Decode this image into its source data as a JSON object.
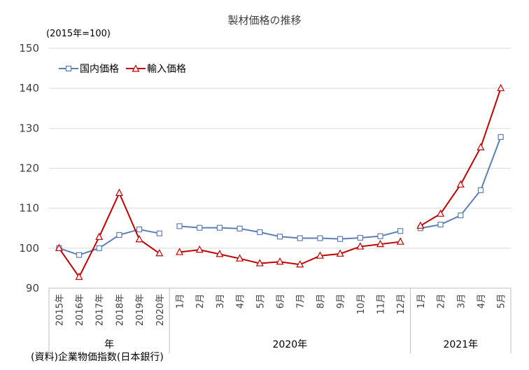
{
  "chart_data": {
    "type": "line",
    "title": "製材価格の推移",
    "unit_label": "(2015年=100)",
    "source": "(資料)企業物価指数(日本銀行)",
    "ylim": [
      90,
      150
    ],
    "yticks": [
      90,
      100,
      110,
      120,
      130,
      140,
      150
    ],
    "grid": true,
    "legend_position": "top-left",
    "colors": {
      "domestic": "#5b7fb5",
      "import": "#c00000",
      "grid": "#d9d9d9",
      "axis": "#bfbfbf"
    },
    "groups": [
      {
        "label": "年",
        "categories": [
          "2015年",
          "2016年",
          "2017年",
          "2018年",
          "2019年",
          "2020年"
        ],
        "series": [
          {
            "name": "国内価格",
            "values": [
              100.0,
              98.3,
              100.0,
              103.3,
              104.7,
              103.7
            ]
          },
          {
            "name": "輸入価格",
            "values": [
              100.0,
              92.8,
              102.8,
              113.8,
              102.2,
              98.7
            ]
          }
        ]
      },
      {
        "label": "2020年",
        "categories": [
          "1月",
          "2月",
          "3月",
          "4月",
          "5月",
          "6月",
          "7月",
          "8月",
          "9月",
          "10月",
          "11月",
          "12月"
        ],
        "series": [
          {
            "name": "国内価格",
            "values": [
              105.5,
              105.1,
              105.1,
              104.9,
              104.0,
              102.9,
              102.5,
              102.5,
              102.3,
              102.6,
              103.0,
              104.3
            ]
          },
          {
            "name": "輸入価格",
            "values": [
              99.0,
              99.6,
              98.5,
              97.4,
              96.2,
              96.6,
              95.9,
              98.1,
              98.6,
              100.4,
              101.0,
              101.6
            ]
          }
        ]
      },
      {
        "label": "2021年",
        "categories": [
          "1月",
          "2月",
          "3月",
          "4月",
          "5月"
        ],
        "series": [
          {
            "name": "国内価格",
            "values": [
              105.0,
              105.9,
              108.2,
              114.5,
              127.8
            ]
          },
          {
            "name": "輸入価格",
            "values": [
              105.6,
              108.6,
              115.9,
              125.2,
              140.0
            ]
          }
        ]
      }
    ]
  }
}
